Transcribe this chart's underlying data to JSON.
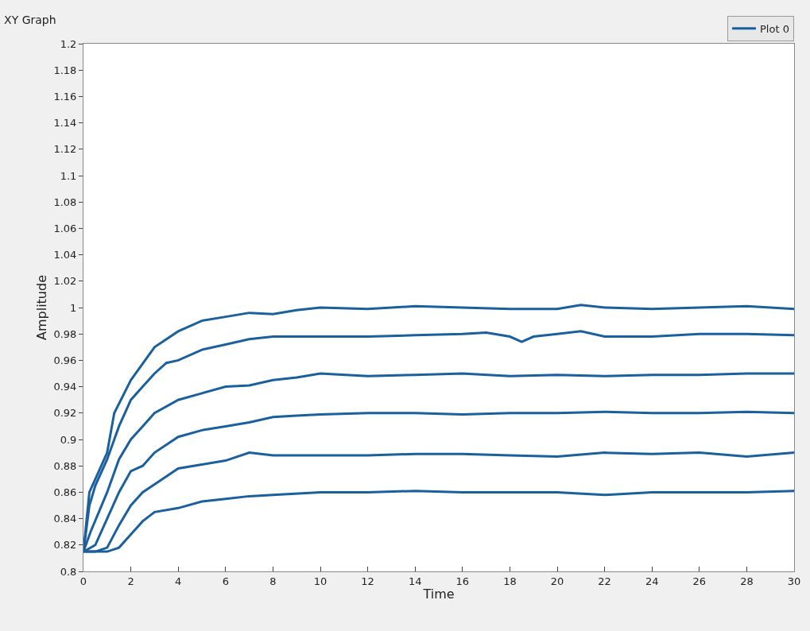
{
  "chart_data": {
    "type": "line",
    "title": "XY Graph",
    "xlabel": "Time",
    "ylabel": "Amplitude",
    "legend": "top right",
    "grid": false,
    "line_style": "solid",
    "xlim": [
      0,
      30
    ],
    "xticks": [
      0,
      2,
      4,
      6,
      8,
      10,
      12,
      14,
      16,
      18,
      20,
      22,
      24,
      26,
      28,
      30
    ],
    "ylim": [
      0.8,
      1.2
    ],
    "yticks": [
      0.8,
      0.82,
      0.84,
      0.86,
      0.88,
      0.9,
      0.92,
      0.94,
      0.96,
      0.98,
      1,
      1.02,
      1.04,
      1.06,
      1.08,
      1.1,
      1.12,
      1.14,
      1.16,
      1.18,
      1.2
    ],
    "series": [
      {
        "name": "Plot 0",
        "color": "#1a5f9e",
        "x": [
          0,
          0.25,
          0.5,
          1,
          1.3,
          2,
          3,
          4,
          5,
          6,
          7,
          8,
          9,
          10,
          12,
          14,
          16,
          18,
          20,
          21,
          22,
          24,
          26,
          28,
          30
        ],
        "values": [
          0.815,
          0.86,
          0.87,
          0.89,
          0.92,
          0.945,
          0.97,
          0.982,
          0.99,
          0.993,
          0.996,
          0.995,
          0.998,
          1.0,
          0.999,
          1.001,
          1.0,
          0.999,
          0.999,
          1.002,
          1.0,
          0.999,
          1.0,
          1.001,
          0.999
        ]
      },
      {
        "color": "#1a5f9e",
        "x": [
          0,
          0.25,
          0.5,
          1,
          1.5,
          2,
          2.5,
          3,
          3.5,
          4,
          5,
          6,
          7,
          8,
          10,
          12,
          14,
          16,
          17,
          18,
          18.5,
          19,
          20,
          21,
          22,
          24,
          26,
          28,
          30
        ],
        "values": [
          0.815,
          0.85,
          0.865,
          0.885,
          0.91,
          0.93,
          0.94,
          0.95,
          0.958,
          0.96,
          0.968,
          0.972,
          0.976,
          0.978,
          0.978,
          0.978,
          0.979,
          0.98,
          0.981,
          0.978,
          0.974,
          0.978,
          0.98,
          0.982,
          0.978,
          0.978,
          0.98,
          0.98,
          0.979
        ]
      },
      {
        "color": "#1a5f9e",
        "x": [
          0,
          0.3,
          1,
          1.5,
          2,
          2.5,
          3,
          4,
          5,
          6,
          7,
          8,
          9,
          10,
          12,
          14,
          16,
          18,
          20,
          22,
          24,
          26,
          28,
          30
        ],
        "values": [
          0.815,
          0.83,
          0.86,
          0.885,
          0.9,
          0.91,
          0.92,
          0.93,
          0.935,
          0.94,
          0.941,
          0.945,
          0.947,
          0.95,
          0.948,
          0.949,
          0.95,
          0.948,
          0.949,
          0.948,
          0.949,
          0.949,
          0.95,
          0.95
        ]
      },
      {
        "color": "#1a5f9e",
        "x": [
          0,
          0.5,
          1,
          1.5,
          2,
          2.5,
          3,
          4,
          5,
          6,
          7,
          8,
          9,
          10,
          12,
          14,
          16,
          18,
          20,
          22,
          24,
          26,
          28,
          30
        ],
        "values": [
          0.815,
          0.82,
          0.84,
          0.86,
          0.876,
          0.88,
          0.89,
          0.902,
          0.907,
          0.91,
          0.913,
          0.917,
          0.918,
          0.919,
          0.92,
          0.92,
          0.919,
          0.92,
          0.92,
          0.921,
          0.92,
          0.92,
          0.921,
          0.92
        ]
      },
      {
        "color": "#1a5f9e",
        "x": [
          0,
          0.5,
          1,
          1.5,
          2,
          2.5,
          3,
          4,
          5,
          6,
          7,
          8,
          9,
          10,
          12,
          14,
          16,
          18,
          20,
          22,
          24,
          26,
          28,
          30
        ],
        "values": [
          0.815,
          0.815,
          0.818,
          0.835,
          0.85,
          0.86,
          0.866,
          0.878,
          0.881,
          0.884,
          0.89,
          0.888,
          0.888,
          0.888,
          0.888,
          0.889,
          0.889,
          0.888,
          0.887,
          0.89,
          0.889,
          0.89,
          0.887,
          0.89
        ]
      },
      {
        "color": "#1a5f9e",
        "x": [
          0,
          1,
          1.5,
          2,
          2.5,
          3,
          4,
          5,
          6,
          7,
          8,
          10,
          12,
          14,
          16,
          18,
          20,
          22,
          24,
          26,
          28,
          30
        ],
        "values": [
          0.815,
          0.815,
          0.818,
          0.828,
          0.838,
          0.845,
          0.848,
          0.853,
          0.855,
          0.857,
          0.858,
          0.86,
          0.86,
          0.861,
          0.86,
          0.86,
          0.86,
          0.858,
          0.86,
          0.86,
          0.86,
          0.861
        ]
      }
    ]
  }
}
